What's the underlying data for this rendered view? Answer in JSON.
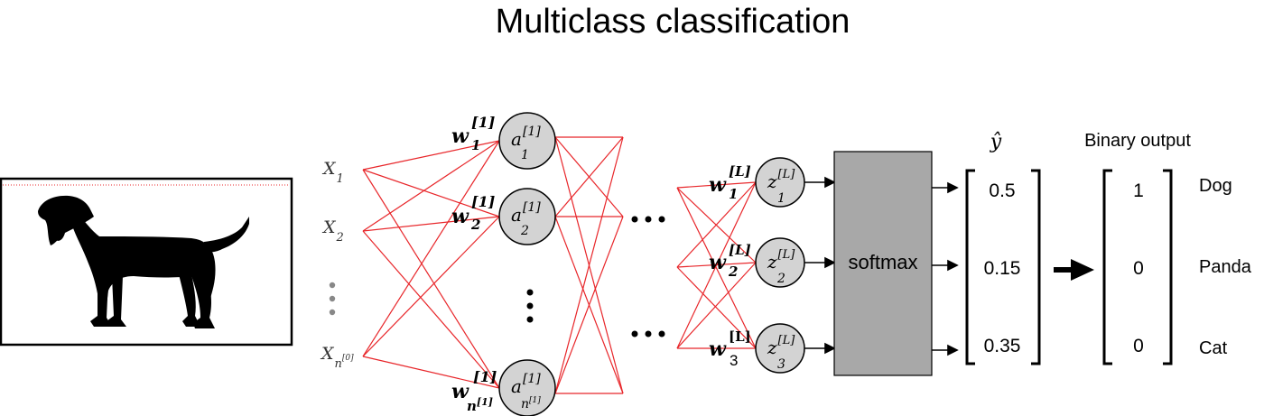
{
  "title": "Multiclass classification",
  "inputs": [
    {
      "base": "X",
      "sub": "1",
      "sup": ""
    },
    {
      "base": "X",
      "sub": "2",
      "sup": ""
    },
    {
      "base": "X",
      "sub": "n",
      "sup": "[0]"
    }
  ],
  "hidden_nodes": [
    {
      "base": "a",
      "sup": "[1]",
      "sub": "1"
    },
    {
      "base": "a",
      "sup": "[1]",
      "sub": "2"
    },
    {
      "base": "a",
      "sup": "[1]",
      "sub": "n",
      "subsup": "[1]"
    }
  ],
  "hidden_weights": [
    {
      "base": "w",
      "sup": "[1]",
      "sub": "1"
    },
    {
      "base": "w",
      "sup": "[1]",
      "sub": "2"
    },
    {
      "base": "w",
      "sup": "[1]",
      "sub": "n",
      "subsup": "[1]"
    }
  ],
  "output_nodes": [
    {
      "base": "z",
      "sup": "[L]",
      "sub": "1"
    },
    {
      "base": "z",
      "sup": "[L]",
      "sub": "2"
    },
    {
      "base": "z",
      "sup": "[L]",
      "sub": "3"
    }
  ],
  "output_weights": [
    {
      "base": "w",
      "sup": "[L]",
      "sub": "1"
    },
    {
      "base": "w",
      "sup": "[L]",
      "sub": "2"
    },
    {
      "base": "w",
      "sup": "[L]",
      "sub": "3"
    }
  ],
  "softmax_label": "softmax",
  "yhat_symbol": "ŷ",
  "yhat_values": [
    "0.5",
    "0.15",
    "0.35"
  ],
  "binary_header": "Binary output",
  "binary_values": [
    "1",
    "0",
    "0"
  ],
  "class_labels": [
    "Dog",
    "Panda",
    "Cat"
  ],
  "colors": {
    "connection": "#e8262a",
    "node_fill": "#d3d3d3",
    "softmax_fill": "#a8a8a8",
    "text": "#000000"
  }
}
